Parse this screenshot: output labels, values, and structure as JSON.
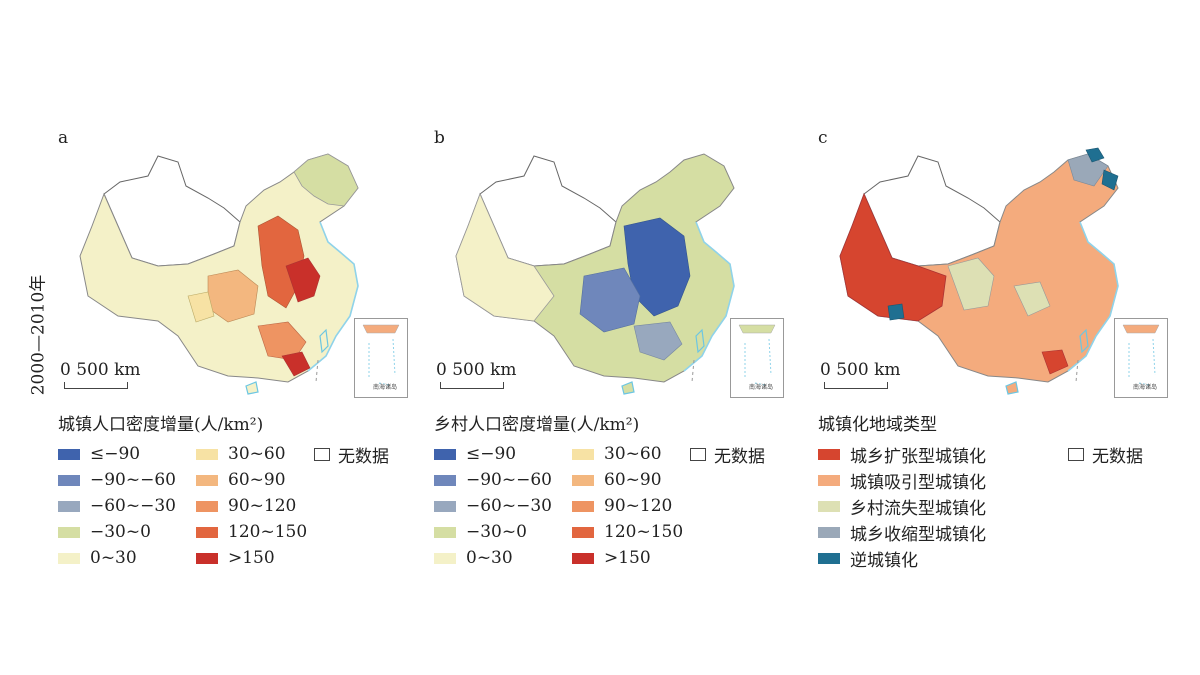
{
  "side_label": "2000—2010年",
  "scale_label": "0  500 km",
  "inset_label": "南海诸岛",
  "colors": {
    "le_m90": "#3f63ad",
    "m90_m60": "#6f87bb",
    "m60_m30": "#98a8be",
    "m30_0": "#d5dea3",
    "0_30": "#f4f1c8",
    "30_60": "#f7e2a4",
    "60_90": "#f3b77f",
    "90_120": "#ee9462",
    "120_150": "#e2663f",
    "gt150": "#c9302a",
    "nodata": "#ffffff",
    "expansion": "#d6452f",
    "attraction": "#f4ab7d",
    "outflow": "#dde0b4",
    "shrinkage": "#9aa8b8",
    "counter": "#1f6f91",
    "water": "#8fd3ea"
  },
  "panels": [
    {
      "letter": "a",
      "legend_title": "城镇人口密度增量(人/km²)",
      "legend_col1": [
        {
          "label": "≤−90",
          "color": "#3f63ad"
        },
        {
          "label": "−90~−60",
          "color": "#6f87bb"
        },
        {
          "label": "−60~−30",
          "color": "#98a8be"
        },
        {
          "label": "−30~0",
          "color": "#d5dea3"
        },
        {
          "label": "0~30",
          "color": "#f4f1c8"
        }
      ],
      "legend_col2": [
        {
          "label": "30~60",
          "color": "#f7e2a4"
        },
        {
          "label": "60~90",
          "color": "#f3b77f"
        },
        {
          "label": "90~120",
          "color": "#ee9462"
        },
        {
          "label": "120~150",
          "color": "#e2663f"
        },
        {
          "label": ">150",
          "color": "#c9302a"
        }
      ],
      "nodata_label": "无数据"
    },
    {
      "letter": "b",
      "legend_title": "乡村人口密度增量(人/km²)",
      "legend_col1": [
        {
          "label": "≤−90",
          "color": "#3f63ad"
        },
        {
          "label": "−90~−60",
          "color": "#6f87bb"
        },
        {
          "label": "−60~−30",
          "color": "#98a8be"
        },
        {
          "label": "−30~0",
          "color": "#d5dea3"
        },
        {
          "label": "0~30",
          "color": "#f4f1c8"
        }
      ],
      "legend_col2": [
        {
          "label": "30~60",
          "color": "#f7e2a4"
        },
        {
          "label": "60~90",
          "color": "#f3b77f"
        },
        {
          "label": "90~120",
          "color": "#ee9462"
        },
        {
          "label": "120~150",
          "color": "#e2663f"
        },
        {
          "label": ">150",
          "color": "#c9302a"
        }
      ],
      "nodata_label": "无数据"
    },
    {
      "letter": "c",
      "legend_title": "城镇化地域类型",
      "legend_col1": [
        {
          "label": "城乡扩张型城镇化",
          "color": "#d6452f"
        },
        {
          "label": "城镇吸引型城镇化",
          "color": "#f4ab7d"
        },
        {
          "label": "乡村流失型城镇化",
          "color": "#dde0b4"
        },
        {
          "label": "城乡收缩型城镇化",
          "color": "#9aa8b8"
        },
        {
          "label": "逆城镇化",
          "color": "#1f6f91"
        }
      ],
      "legend_col2": [],
      "nodata_label": "无数据"
    }
  ]
}
